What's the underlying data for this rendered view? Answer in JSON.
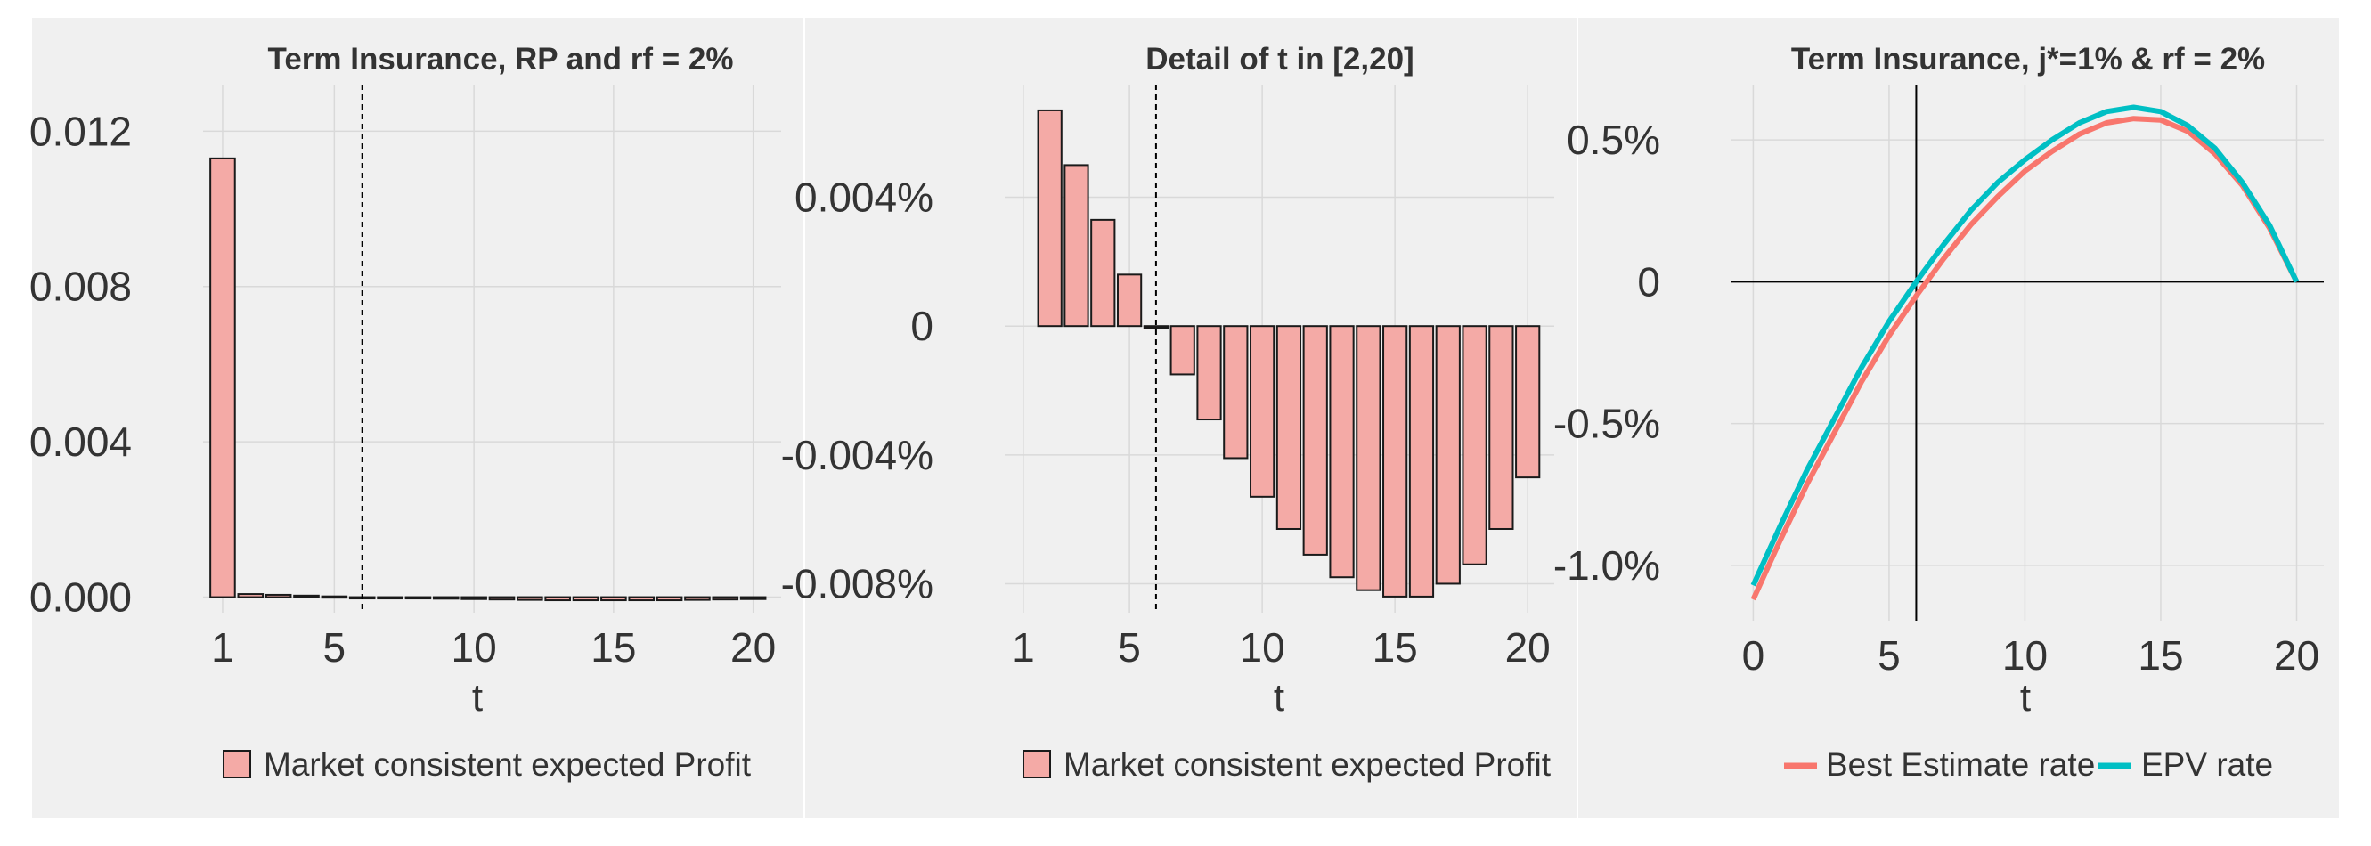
{
  "chart_data": [
    {
      "type": "bar",
      "title": "Term Insurance, RP and rf = 2%",
      "xlabel": "t",
      "ylabel": "",
      "x": [
        1,
        2,
        3,
        4,
        5,
        6,
        7,
        8,
        9,
        10,
        11,
        12,
        13,
        14,
        15,
        16,
        17,
        18,
        19,
        20
      ],
      "values": [
        0.0113,
        8e-05,
        6e-05,
        4e-05,
        2e-05,
        0.0,
        -1e-05,
        -3e-05,
        -4e-05,
        -5e-05,
        -6e-05,
        -7e-05,
        -8e-05,
        -8e-05,
        -8e-05,
        -8e-05,
        -8e-05,
        -7e-05,
        -6e-05,
        -5e-05
      ],
      "xlim": [
        0.3,
        21.0
      ],
      "ylim": [
        -0.0004,
        0.0132
      ],
      "xticks": [
        1,
        5,
        10,
        15,
        20
      ],
      "xtick_labels": [
        "1",
        "5",
        "10",
        "15",
        "20"
      ],
      "yticks": [
        0.0,
        0.004,
        0.008,
        0.012
      ],
      "ytick_labels": [
        "0.000",
        "0.004",
        "0.008",
        "0.012"
      ],
      "vline": 6,
      "vline_style": "dashed",
      "legend": {
        "position": "bottom",
        "entries": [
          "Market consistent expected Profit"
        ]
      }
    },
    {
      "type": "bar",
      "title": "Detail of t in [2,20]",
      "xlabel": "t",
      "ylabel": "",
      "x": [
        1,
        2,
        3,
        4,
        5,
        6,
        7,
        8,
        9,
        10,
        11,
        12,
        13,
        14,
        15,
        16,
        17,
        18,
        19,
        20
      ],
      "values": [
        null,
        0.0067,
        0.005,
        0.0033,
        0.0016,
        -5e-05,
        -0.0015,
        -0.0029,
        -0.0041,
        -0.0053,
        -0.0063,
        -0.0071,
        -0.0078,
        -0.0082,
        -0.0084,
        -0.0084,
        -0.008,
        -0.0074,
        -0.0063,
        -0.0047
      ],
      "xlim": [
        0.3,
        21.0
      ],
      "ylim": [
        -0.0089,
        0.0075
      ],
      "xticks": [
        1,
        5,
        10,
        15,
        20
      ],
      "xtick_labels": [
        "1",
        "5",
        "10",
        "15",
        "20"
      ],
      "yticks": [
        -0.008,
        -0.004,
        0.0,
        0.004
      ],
      "ytick_labels": [
        "-0.008%",
        "-0.004%",
        "0",
        "0.004%"
      ],
      "vline": 6,
      "vline_style": "dashed",
      "legend": {
        "position": "bottom",
        "entries": [
          "Market consistent expected Profit"
        ]
      }
    },
    {
      "type": "line",
      "title": "Term Insurance, j*=1% & rf = 2%",
      "xlabel": "t",
      "ylabel": "",
      "xlim": [
        -0.8,
        21.0
      ],
      "ylim": [
        -1.195,
        0.695
      ],
      "xticks": [
        0,
        5,
        10,
        15,
        20
      ],
      "xtick_labels": [
        "0",
        "5",
        "10",
        "15",
        "20"
      ],
      "yticks": [
        -1.0,
        -0.5,
        0.0,
        0.5
      ],
      "ytick_labels": [
        "-1.0%",
        "-0.5%",
        "0",
        "0.5%"
      ],
      "vline": 6,
      "vline_style": "solid",
      "hline": 0,
      "series": [
        {
          "name": "Best Estimate rate",
          "color": "#f8766d",
          "x": [
            0,
            1,
            2,
            3,
            4,
            5,
            6,
            7,
            8,
            9,
            10,
            11,
            12,
            13,
            14,
            15,
            16,
            17,
            18,
            19,
            20
          ],
          "y": [
            -1.12,
            -0.91,
            -0.71,
            -0.53,
            -0.35,
            -0.19,
            -0.05,
            0.08,
            0.2,
            0.3,
            0.39,
            0.46,
            0.52,
            0.56,
            0.575,
            0.57,
            0.53,
            0.45,
            0.34,
            0.19,
            0.0
          ]
        },
        {
          "name": "EPV rate",
          "color": "#00bfc4",
          "x": [
            0,
            1,
            2,
            3,
            4,
            5,
            6,
            7,
            8,
            9,
            10,
            11,
            12,
            13,
            14,
            15,
            16,
            17,
            18,
            19,
            20
          ],
          "y": [
            -1.07,
            -0.86,
            -0.66,
            -0.48,
            -0.3,
            -0.14,
            0.0,
            0.13,
            0.25,
            0.35,
            0.43,
            0.5,
            0.56,
            0.6,
            0.615,
            0.6,
            0.55,
            0.47,
            0.35,
            0.2,
            0.0
          ]
        }
      ],
      "legend": {
        "position": "bottom",
        "entries": [
          "Best Estimate rate",
          "EPV rate"
        ]
      }
    }
  ]
}
